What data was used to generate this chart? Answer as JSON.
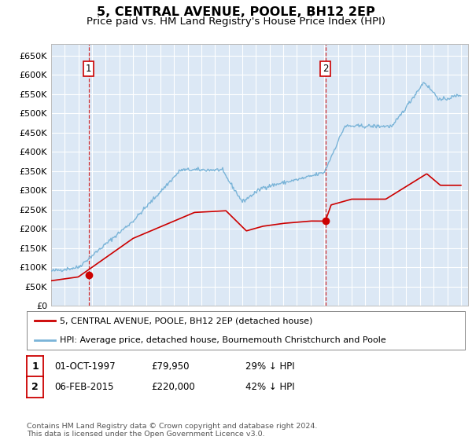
{
  "title": "5, CENTRAL AVENUE, POOLE, BH12 2EP",
  "subtitle": "Price paid vs. HM Land Registry's House Price Index (HPI)",
  "title_fontsize": 11.5,
  "subtitle_fontsize": 9.5,
  "bg_color": "#dce8f5",
  "grid_color": "#ffffff",
  "hpi_color": "#7ab4d8",
  "sale_color": "#cc0000",
  "ylim": [
    0,
    680000
  ],
  "yticks": [
    0,
    50000,
    100000,
    150000,
    200000,
    250000,
    300000,
    350000,
    400000,
    450000,
    500000,
    550000,
    600000,
    650000
  ],
  "ytick_labels": [
    "£0",
    "£50K",
    "£100K",
    "£150K",
    "£200K",
    "£250K",
    "£300K",
    "£350K",
    "£400K",
    "£450K",
    "£500K",
    "£550K",
    "£600K",
    "£650K"
  ],
  "sale1_year": 1997.75,
  "sale1_price": 79950,
  "sale2_year": 2015.08,
  "sale2_price": 220000,
  "legend_sale_label": "5, CENTRAL AVENUE, POOLE, BH12 2EP (detached house)",
  "legend_hpi_label": "HPI: Average price, detached house, Bournemouth Christchurch and Poole",
  "table1": [
    "1",
    "01-OCT-1997",
    "£79,950",
    "29% ↓ HPI"
  ],
  "table2": [
    "2",
    "06-FEB-2015",
    "£220,000",
    "42% ↓ HPI"
  ],
  "copyright_text": "Contains HM Land Registry data © Crown copyright and database right 2024.\nThis data is licensed under the Open Government Licence v3.0.",
  "xlim_start": 1995.0,
  "xlim_end": 2025.5
}
